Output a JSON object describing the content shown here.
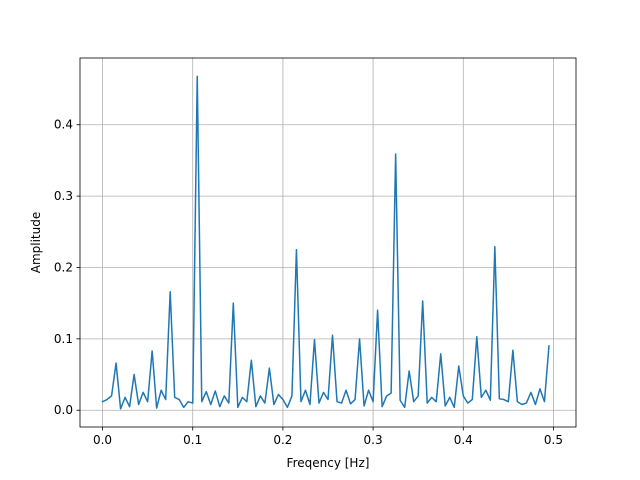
{
  "chart_data": {
    "type": "line",
    "title": "",
    "xlabel": "Freqency [Hz]",
    "ylabel": "Amplitude",
    "xlim": [
      -0.025,
      0.525
    ],
    "ylim": [
      -0.0235,
      0.4935
    ],
    "grid": true,
    "line_color": "#1f77b4",
    "xticks": [
      0.0,
      0.1,
      0.2,
      0.3,
      0.4,
      0.5
    ],
    "xtick_labels": [
      "0.0",
      "0.1",
      "0.2",
      "0.3",
      "0.4",
      "0.5"
    ],
    "yticks": [
      0.0,
      0.1,
      0.2,
      0.3,
      0.4
    ],
    "ytick_labels": [
      "0.0",
      "0.1",
      "0.2",
      "0.3",
      "0.4"
    ],
    "series": [
      {
        "x": [
          0.0,
          0.005,
          0.01,
          0.015,
          0.02,
          0.025,
          0.03,
          0.035,
          0.04,
          0.045,
          0.05,
          0.055,
          0.06,
          0.065,
          0.07,
          0.075,
          0.08,
          0.085,
          0.09,
          0.095,
          0.1,
          0.105,
          0.11,
          0.115,
          0.12,
          0.125,
          0.13,
          0.135,
          0.14,
          0.145,
          0.15,
          0.155,
          0.16,
          0.165,
          0.17,
          0.175,
          0.18,
          0.185,
          0.19,
          0.195,
          0.2,
          0.205,
          0.21,
          0.215,
          0.22,
          0.225,
          0.23,
          0.235,
          0.24,
          0.245,
          0.25,
          0.255,
          0.26,
          0.265,
          0.27,
          0.275,
          0.28,
          0.285,
          0.29,
          0.295,
          0.3,
          0.305,
          0.31,
          0.315,
          0.32,
          0.325,
          0.33,
          0.335,
          0.34,
          0.345,
          0.35,
          0.355,
          0.36,
          0.365,
          0.37,
          0.375,
          0.38,
          0.385,
          0.39,
          0.395,
          0.4,
          0.405,
          0.41,
          0.415,
          0.42,
          0.425,
          0.43,
          0.435,
          0.44,
          0.445,
          0.45,
          0.455,
          0.46,
          0.465,
          0.47,
          0.475,
          0.48,
          0.485,
          0.49,
          0.495
        ],
        "y": [
          0.012,
          0.015,
          0.02,
          0.066,
          0.002,
          0.018,
          0.005,
          0.05,
          0.008,
          0.025,
          0.012,
          0.083,
          0.003,
          0.028,
          0.015,
          0.166,
          0.018,
          0.015,
          0.004,
          0.012,
          0.01,
          0.468,
          0.012,
          0.026,
          0.008,
          0.027,
          0.005,
          0.02,
          0.01,
          0.15,
          0.004,
          0.018,
          0.012,
          0.07,
          0.005,
          0.02,
          0.01,
          0.059,
          0.008,
          0.022,
          0.015,
          0.004,
          0.02,
          0.225,
          0.012,
          0.028,
          0.008,
          0.099,
          0.01,
          0.025,
          0.015,
          0.105,
          0.012,
          0.01,
          0.028,
          0.009,
          0.015,
          0.1,
          0.006,
          0.028,
          0.012,
          0.14,
          0.005,
          0.02,
          0.024,
          0.359,
          0.014,
          0.004,
          0.055,
          0.012,
          0.02,
          0.153,
          0.01,
          0.018,
          0.012,
          0.079,
          0.006,
          0.018,
          0.004,
          0.062,
          0.02,
          0.01,
          0.015,
          0.103,
          0.018,
          0.028,
          0.014,
          0.229,
          0.016,
          0.015,
          0.012,
          0.084,
          0.012,
          0.008,
          0.01,
          0.025,
          0.008,
          0.03,
          0.012,
          0.09
        ]
      }
    ]
  }
}
